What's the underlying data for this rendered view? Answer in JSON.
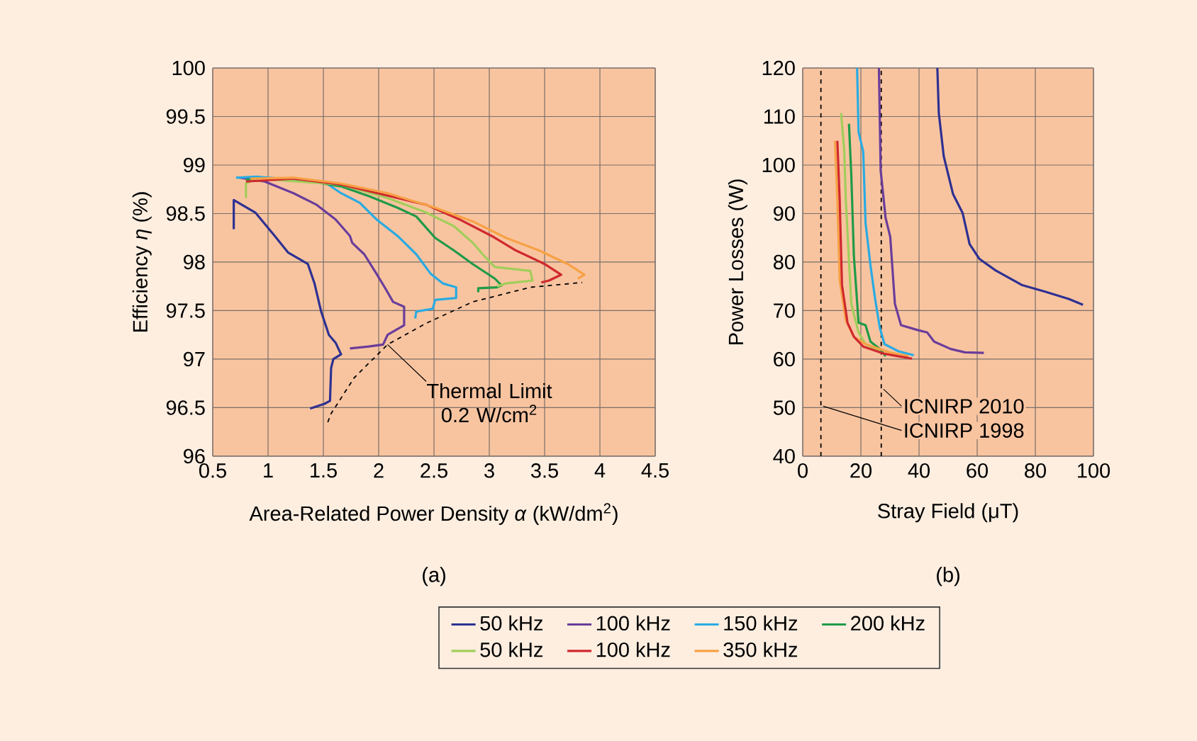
{
  "chart_data": [
    {
      "type": "line",
      "xlabel": "Area-Related Power Density *α* (kW/dm$^{2}$)",
      "ylabel": "Efficiency *η* (%)",
      "xlim": [
        0.5,
        4.5
      ],
      "xticks": [
        0.5,
        1,
        1.5,
        2,
        2.5,
        3,
        3.5,
        4,
        4.5
      ],
      "ylim": [
        96,
        100
      ],
      "yticks": [
        96,
        96.5,
        97,
        97.5,
        98,
        98.5,
        99,
        99.5,
        100
      ],
      "grid": true,
      "legend": "bottom",
      "annotations": [
        {
          "text": "Thermal Limit 0.2 W/cm$^{2}$",
          "x": 2.08,
          "y": 97.15
        },
        "(a)"
      ],
      "series": [
        {
          "name": "50 kHz",
          "color": "#2e3192",
          "x": [
            0.69,
            0.69,
            0.885,
            1.06,
            1.18,
            1.36,
            1.42,
            1.48,
            1.55,
            1.61,
            1.66,
            1.59,
            1.57,
            1.56,
            1.51,
            1.38
          ],
          "values": [
            98.34,
            98.64,
            98.51,
            98.27,
            98.1,
            97.98,
            97.78,
            97.49,
            97.25,
            97.17,
            97.05,
            97.0,
            96.91,
            96.57,
            96.54,
            96.49
          ]
        },
        {
          "name": "100 kHz",
          "color": "#6a3d9a",
          "x": [
            0.74,
            0.97,
            1.23,
            1.44,
            1.61,
            1.74,
            1.76,
            1.87,
            1.98,
            2.06,
            2.13,
            2.23,
            2.23,
            2.08,
            2.04,
            1.91,
            1.74
          ],
          "values": [
            98.87,
            98.83,
            98.71,
            98.59,
            98.44,
            98.27,
            98.2,
            98.08,
            97.88,
            97.73,
            97.59,
            97.54,
            97.35,
            97.25,
            97.15,
            97.13,
            97.11
          ]
        },
        {
          "name": "150 kHz",
          "color": "#29abe2",
          "x": [
            0.71,
            0.89,
            1.23,
            1.53,
            1.66,
            1.83,
            1.98,
            2.17,
            2.34,
            2.47,
            2.58,
            2.7,
            2.7,
            2.51,
            2.49,
            2.34,
            2.33
          ],
          "values": [
            98.87,
            98.88,
            98.85,
            98.81,
            98.71,
            98.61,
            98.44,
            98.27,
            98.08,
            97.88,
            97.78,
            97.74,
            97.63,
            97.61,
            97.52,
            97.49,
            97.42
          ]
        },
        {
          "name": "200 kHz",
          "color": "#1f9a48",
          "x": [
            0.8,
            1.23,
            1.66,
            1.91,
            2.17,
            2.34,
            2.51,
            2.68,
            2.85,
            3.05,
            3.11,
            3.07,
            2.9,
            2.9
          ],
          "values": [
            98.85,
            98.86,
            98.78,
            98.68,
            98.56,
            98.47,
            98.25,
            98.12,
            97.98,
            97.83,
            97.76,
            97.74,
            97.73,
            97.69
          ]
        },
        {
          "name": "50 kHz",
          "color": "#a2cd5a",
          "x": [
            0.8,
            0.8,
            0.89,
            1.66,
            2.08,
            2.43,
            2.68,
            2.85,
            2.94,
            3.05,
            3.37,
            3.39,
            3.15,
            3.07
          ],
          "values": [
            98.66,
            98.81,
            98.86,
            98.8,
            98.66,
            98.51,
            98.37,
            98.2,
            98.08,
            97.95,
            97.91,
            97.81,
            97.78,
            97.75
          ]
        },
        {
          "name": "100 kHz",
          "color": "#d0282e",
          "x": [
            0.8,
            1.23,
            1.66,
            2.43,
            2.73,
            3.02,
            3.24,
            3.5,
            3.65,
            3.54,
            3.47
          ],
          "values": [
            98.83,
            98.86,
            98.8,
            98.59,
            98.44,
            98.27,
            98.12,
            97.98,
            97.87,
            97.81,
            97.79
          ]
        },
        {
          "name": "350 kHz",
          "color": "#f7a145",
          "x": [
            0.84,
            1.23,
            1.66,
            2.08,
            2.51,
            2.85,
            3.15,
            3.45,
            3.71,
            3.86,
            3.8
          ],
          "values": [
            98.86,
            98.87,
            98.81,
            98.71,
            98.56,
            98.42,
            98.25,
            98.12,
            97.98,
            97.87,
            97.83
          ]
        },
        {
          "color": "#000000",
          "line_style": "dashed",
          "x": [
            1.54,
            1.57,
            1.78,
            2.08,
            2.43,
            2.85,
            3.37,
            3.84
          ],
          "values": [
            96.35,
            96.44,
            96.81,
            97.15,
            97.37,
            97.59,
            97.74,
            97.79
          ]
        }
      ]
    },
    {
      "type": "line",
      "xlabel": "Stray Field (μT)",
      "ylabel": "Power Losses (W)",
      "xlim": [
        0,
        100
      ],
      "xticks": [
        0,
        20,
        40,
        60,
        80,
        100
      ],
      "ylim": [
        40,
        120
      ],
      "yticks": [
        40,
        50,
        60,
        70,
        80,
        90,
        100,
        110,
        120
      ],
      "grid": true,
      "ref_lines": [
        {
          "axis": "x",
          "value": 27,
          "label": "ICNIRP 2010",
          "color": "#000000",
          "line_style": "dashed"
        },
        {
          "axis": "x",
          "value": 6.25,
          "label": "ICNIRP 1998",
          "color": "#000000",
          "line_style": "dashed"
        }
      ],
      "annotations": [
        "(b)"
      ],
      "series": [
        {
          "color": "#2e3192",
          "x": [
            46.3,
            46.8,
            48.5,
            51.7,
            55.0,
            57.4,
            60.7,
            66.3,
            75.3,
            83.4,
            91.5,
            96.4
          ],
          "values": [
            120,
            110.7,
            101.8,
            94.0,
            90.1,
            83.7,
            80.7,
            78.3,
            75.3,
            73.9,
            72.4,
            71.2
          ]
        },
        {
          "color": "#6a3d9a",
          "x": [
            26.2,
            26.8,
            28.5,
            30.1,
            31.7,
            33.8,
            39.5,
            42.8,
            45.2,
            50.9,
            55.8,
            62.3
          ],
          "values": [
            120,
            98.9,
            89.1,
            85.2,
            71.4,
            67.0,
            66.0,
            65.5,
            63.6,
            62.1,
            61.4,
            61.3
          ]
        },
        {
          "color": "#29abe2",
          "x": [
            18.7,
            19.2,
            20.8,
            21.6,
            23.3,
            24.9,
            26.5,
            28.1,
            33.0,
            38.2
          ],
          "values": [
            120,
            106.8,
            102.8,
            88.1,
            79.3,
            72.4,
            66.5,
            63.1,
            61.6,
            60.8
          ]
        },
        {
          "color": "#1f9a48",
          "x": [
            15.9,
            16.7,
            17.6,
            19.2,
            21.6,
            23.3,
            26.5,
            28.5
          ],
          "values": [
            108.5,
            97.9,
            81.2,
            67.5,
            67.0,
            63.6,
            62.1,
            60.6
          ]
        },
        {
          "color": "#a2cd5a",
          "x": [
            13.2,
            14.3,
            14.8,
            15.9,
            16.7,
            19.2,
            21.6,
            26.5
          ],
          "values": [
            110.7,
            102.8,
            93.0,
            80.3,
            71.4,
            65.5,
            63.1,
            61.6
          ]
        },
        {
          "color": "#f7a145",
          "x": [
            11.1,
            11.9,
            12.7,
            14.8,
            17.6,
            21.6,
            29.8,
            36.3
          ],
          "values": [
            105.0,
            93.0,
            76.3,
            68.0,
            64.6,
            63.1,
            61.4,
            60.6
          ]
        },
        {
          "color": "#d0282e",
          "x": [
            11.9,
            12.7,
            13.5,
            15.4,
            17.6,
            20.8,
            28.1,
            37.6
          ],
          "values": [
            105.0,
            93.0,
            75.3,
            67.5,
            64.6,
            62.6,
            61.1,
            60.1
          ]
        }
      ]
    }
  ]
}
